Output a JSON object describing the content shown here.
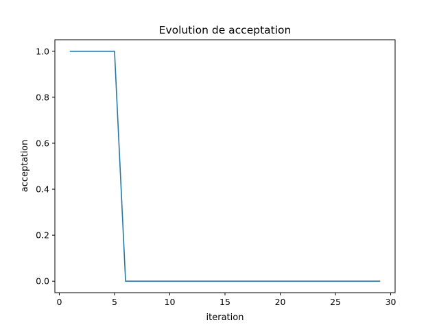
{
  "chart_data": {
    "type": "line",
    "title": "Evolution de acceptation",
    "xlabel": "iteration",
    "ylabel": "acceptation",
    "xlim": [
      -0.4,
      30.4
    ],
    "ylim": [
      -0.05,
      1.05
    ],
    "x_ticks": [
      0,
      5,
      10,
      15,
      20,
      25,
      30
    ],
    "y_ticks": [
      0.0,
      0.2,
      0.4,
      0.6,
      0.8,
      1.0
    ],
    "x_tick_labels": [
      "0",
      "5",
      "10",
      "15",
      "20",
      "25",
      "30"
    ],
    "y_tick_labels": [
      "0.0",
      "0.2",
      "0.4",
      "0.6",
      "0.8",
      "1.0"
    ],
    "grid": false,
    "legend": "none",
    "series": [
      {
        "color": "#1f77b4",
        "x": [
          1,
          2,
          3,
          4,
          5,
          6,
          7,
          8,
          9,
          10,
          11,
          12,
          13,
          14,
          15,
          16,
          17,
          18,
          19,
          20,
          21,
          22,
          23,
          24,
          25,
          26,
          27,
          28,
          29
        ],
        "y": [
          1,
          1,
          1,
          1,
          1,
          0,
          0,
          0,
          0,
          0,
          0,
          0,
          0,
          0,
          0,
          0,
          0,
          0,
          0,
          0,
          0,
          0,
          0,
          0,
          0,
          0,
          0,
          0,
          0
        ]
      }
    ]
  }
}
